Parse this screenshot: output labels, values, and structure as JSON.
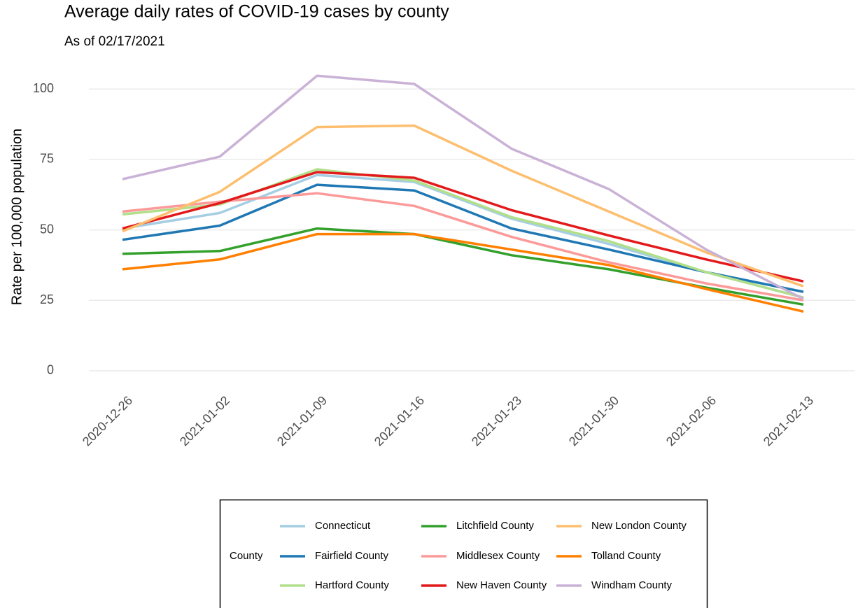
{
  "chart_data": {
    "type": "line",
    "title": "Average daily rates of COVID-19 cases by county",
    "subtitle": "As of 02/17/2021",
    "y_label": "Rate per 100,000 population",
    "x": [
      "2020-12-26",
      "2021-01-02",
      "2021-01-09",
      "2021-01-16",
      "2021-01-23",
      "2021-01-30",
      "2021-02-06",
      "2021-02-13"
    ],
    "ylim": [
      -5,
      110
    ],
    "yticks": [
      0,
      25,
      50,
      75,
      100
    ],
    "grid": true,
    "legend_title": "County",
    "legend_position": "bottom",
    "series": [
      {
        "name": "Connecticut",
        "color": "#a6cee3",
        "values": [
          50.5,
          56,
          69.5,
          67,
          54,
          45,
          35,
          26
        ]
      },
      {
        "name": "Fairfield County",
        "color": "#1f78b4",
        "values": [
          46.5,
          51.5,
          66,
          64,
          50.5,
          43,
          35,
          28
        ]
      },
      {
        "name": "Hartford County",
        "color": "#b2df8a",
        "values": [
          55.5,
          59,
          71.5,
          67.5,
          54.5,
          46,
          35,
          26
        ]
      },
      {
        "name": "Litchfield County",
        "color": "#33a02c",
        "values": [
          41.5,
          42.5,
          50.5,
          48.5,
          41,
          36,
          29.5,
          23.5
        ]
      },
      {
        "name": "Middlesex County",
        "color": "#fb9a99",
        "values": [
          56.5,
          60,
          63,
          58.5,
          47.5,
          38.5,
          31,
          25
        ]
      },
      {
        "name": "New Haven County",
        "color": "#e31a1c",
        "values": [
          50.5,
          59.5,
          70.5,
          68.5,
          57,
          48,
          39.5,
          31.7
        ]
      },
      {
        "name": "New London County",
        "color": "#fdbf6f",
        "values": [
          49.5,
          63.5,
          86.5,
          87,
          71,
          56.5,
          42,
          30
        ]
      },
      {
        "name": "Tolland County",
        "color": "#ff7f00",
        "values": [
          36,
          39.5,
          48.5,
          48.5,
          43,
          37.5,
          29,
          21
        ]
      },
      {
        "name": "Windham County",
        "color": "#cab2d6",
        "values": [
          68,
          76,
          104.7,
          101.8,
          78.8,
          64.5,
          43,
          25.5
        ]
      }
    ]
  }
}
